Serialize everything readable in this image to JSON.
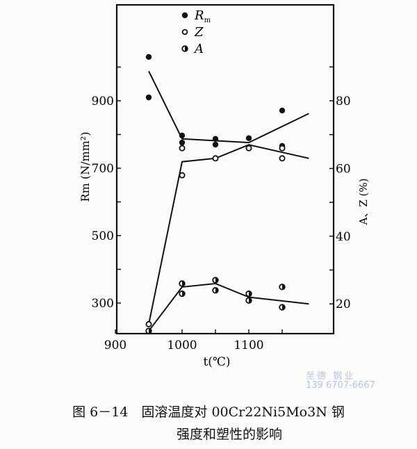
{
  "chart_data": {
    "type": "scatter",
    "title": "",
    "xlabel": "t(℃)",
    "ylabel_left": "Rm (N/mm²)",
    "ylabel_right": "A、Z (%)",
    "x_ticks": [
      900,
      1000,
      1100
    ],
    "x_minor_ticks": [
      1050,
      1150
    ],
    "xlim": [
      900,
      1215
    ],
    "y_left_ticks": [
      300,
      500,
      700,
      900
    ],
    "y_left_lim": [
      160,
      1130
    ],
    "y_right_ticks": [
      20,
      40,
      60,
      80
    ],
    "y_right_lim": [
      11,
      91
    ],
    "legend": [
      {
        "symbol": "filled-circle",
        "label": "Rm"
      },
      {
        "symbol": "open-circle",
        "label": "Z"
      },
      {
        "symbol": "half-filled-circle",
        "label": "A"
      }
    ],
    "legend_position": "top-center-inside",
    "grid": false,
    "series": [
      {
        "name": "Rm",
        "axis": "left",
        "marker": "filled",
        "points": [
          [
            950,
            1030
          ],
          [
            950,
            910
          ],
          [
            1000,
            797
          ],
          [
            1000,
            776
          ],
          [
            1050,
            787
          ],
          [
            1050,
            770
          ],
          [
            1100,
            789
          ],
          [
            1150,
            871
          ],
          [
            1150,
            766
          ]
        ],
        "fit_line": [
          [
            950,
            988
          ],
          [
            1000,
            787
          ],
          [
            1100,
            776
          ],
          [
            1190,
            862
          ]
        ]
      },
      {
        "name": "Z",
        "axis": "right",
        "marker": "open",
        "points": [
          [
            950,
            14
          ],
          [
            1000,
            58
          ],
          [
            1000,
            66
          ],
          [
            1050,
            63
          ],
          [
            1100,
            66
          ],
          [
            1150,
            66
          ],
          [
            1150,
            63
          ]
        ],
        "fit_line": [
          [
            950,
            14
          ],
          [
            1000,
            62
          ],
          [
            1050,
            63
          ],
          [
            1100,
            67
          ],
          [
            1190,
            63
          ]
        ]
      },
      {
        "name": "A",
        "axis": "right",
        "marker": "half",
        "points": [
          [
            950,
            12
          ],
          [
            1000,
            26
          ],
          [
            1000,
            23
          ],
          [
            1050,
            27
          ],
          [
            1050,
            24
          ],
          [
            1100,
            23
          ],
          [
            1100,
            21
          ],
          [
            1150,
            25
          ],
          [
            1150,
            19
          ]
        ],
        "fit_line": [
          [
            950,
            12
          ],
          [
            1000,
            25
          ],
          [
            1050,
            26
          ],
          [
            1100,
            22
          ],
          [
            1190,
            20
          ]
        ]
      }
    ]
  },
  "caption": {
    "line1": "图 6－14　固溶温度对 00Cr22Ni5Mo3N 钢",
    "line2": "强度和塑性的影响"
  },
  "watermark": {
    "line1": "至德 钢业",
    "line2": "139 6707-6667"
  }
}
